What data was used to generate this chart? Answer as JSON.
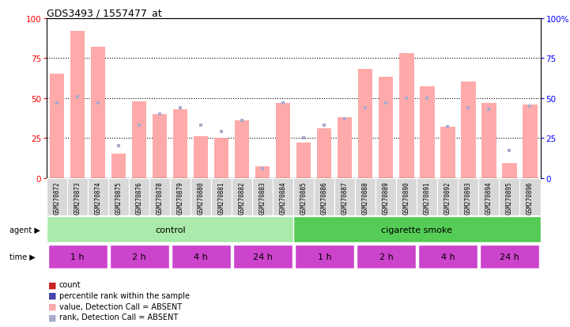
{
  "title": "GDS3493 / 1557477_at",
  "samples": [
    "GSM270872",
    "GSM270873",
    "GSM270874",
    "GSM270875",
    "GSM270876",
    "GSM270878",
    "GSM270879",
    "GSM270880",
    "GSM270881",
    "GSM270882",
    "GSM270883",
    "GSM270884",
    "GSM270885",
    "GSM270886",
    "GSM270887",
    "GSM270888",
    "GSM270889",
    "GSM270890",
    "GSM270891",
    "GSM270892",
    "GSM270893",
    "GSM270894",
    "GSM270895",
    "GSM270896"
  ],
  "absent_count_vals": [
    65,
    92,
    82,
    15,
    48,
    40,
    43,
    26,
    25,
    36,
    7,
    47,
    22,
    31,
    38,
    68,
    63,
    78,
    57,
    32,
    60,
    47,
    9,
    46
  ],
  "absent_rank_vals": [
    47,
    51,
    47,
    20,
    33,
    40,
    44,
    33,
    29,
    36,
    6,
    47,
    25,
    33,
    37,
    44,
    47,
    50,
    50,
    32,
    44,
    43,
    17,
    45
  ],
  "bar_color_absent": "#ffaaaa",
  "rank_absent_color": "#aaaacc",
  "agent_groups": [
    {
      "label": "control",
      "start": 0,
      "end": 12,
      "color": "#aaeaaa"
    },
    {
      "label": "cigarette smoke",
      "start": 12,
      "end": 24,
      "color": "#55cc55"
    }
  ],
  "time_groups": [
    {
      "label": "1 h",
      "start": 0,
      "end": 3
    },
    {
      "label": "2 h",
      "start": 3,
      "end": 6
    },
    {
      "label": "4 h",
      "start": 6,
      "end": 9
    },
    {
      "label": "24 h",
      "start": 9,
      "end": 12
    },
    {
      "label": "1 h",
      "start": 12,
      "end": 15
    },
    {
      "label": "2 h",
      "start": 15,
      "end": 18
    },
    {
      "label": "4 h",
      "start": 18,
      "end": 21
    },
    {
      "label": "24 h",
      "start": 21,
      "end": 24
    }
  ],
  "time_color": "#cc44cc",
  "legend_colors": [
    "#cc2222",
    "#4444aa",
    "#ffaaaa",
    "#aaaacc"
  ],
  "legend_labels": [
    "count",
    "percentile rank within the sample",
    "value, Detection Call = ABSENT",
    "rank, Detection Call = ABSENT"
  ]
}
